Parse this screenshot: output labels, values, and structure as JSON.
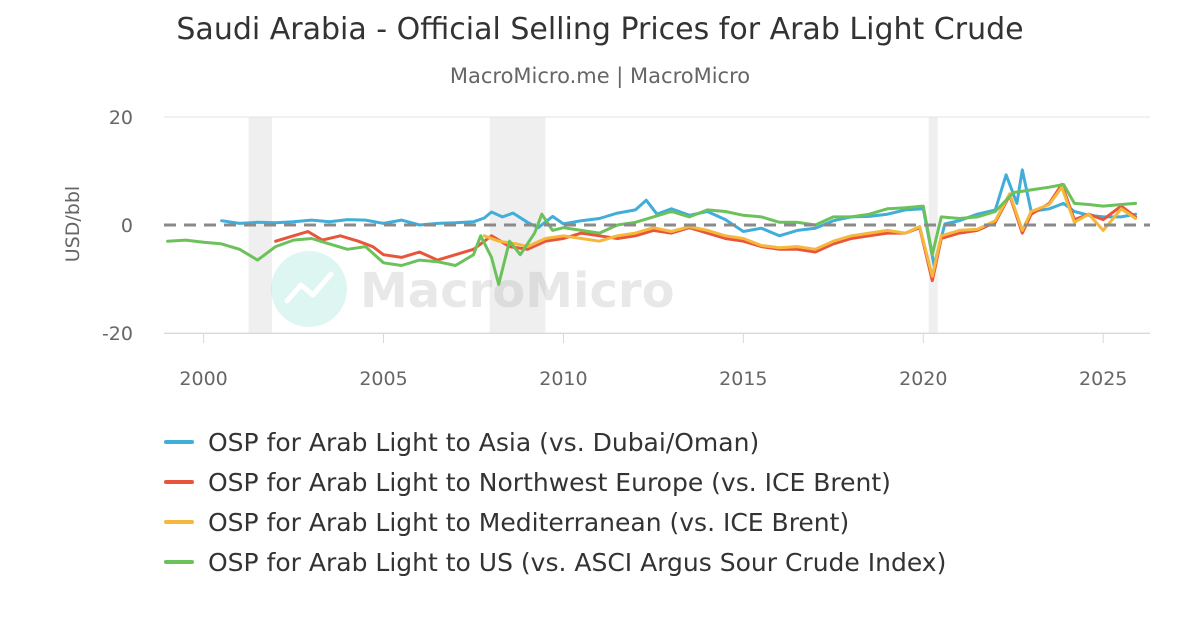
{
  "header": {
    "title": "Saudi Arabia - Official Selling Prices for Arab Light Crude",
    "subtitle": "MacroMicro.me | MacroMicro"
  },
  "watermark": {
    "text": "MacroMicro",
    "logo_icon": "chart-trend-icon",
    "color": "#6fd7c7"
  },
  "chart_data": {
    "type": "line",
    "title": "Saudi Arabia - Official Selling Prices for Arab Light Crude",
    "subtitle": "MacroMicro.me | MacroMicro",
    "xlabel": "",
    "ylabel": "USD/bbl",
    "xlim": [
      1998.9,
      2026.3
    ],
    "ylim": [
      -20,
      20
    ],
    "xticks": [
      2000,
      2005,
      2010,
      2015,
      2020,
      2025
    ],
    "yticks": [
      -20,
      0,
      20
    ],
    "ytick_labels": [
      "-20",
      "0",
      "20"
    ],
    "grid": true,
    "zero_line": "dashed",
    "legend_position": "bottom",
    "shaded_periods": [
      [
        2001.25,
        2001.9
      ],
      [
        2007.95,
        2009.5
      ],
      [
        2020.15,
        2020.4
      ]
    ],
    "series": [
      {
        "name": "OSP for Arab Light to Asia (vs. Dubai/Oman)",
        "color": "#41add9",
        "points": [
          [
            2000.5,
            0.8
          ],
          [
            2001.0,
            0.3
          ],
          [
            2001.5,
            0.5
          ],
          [
            2002.0,
            0.4
          ],
          [
            2002.5,
            0.6
          ],
          [
            2003.0,
            0.9
          ],
          [
            2003.5,
            0.6
          ],
          [
            2004.0,
            1.0
          ],
          [
            2004.5,
            0.9
          ],
          [
            2005.0,
            0.3
          ],
          [
            2005.5,
            0.9
          ],
          [
            2006.0,
            0.0
          ],
          [
            2006.5,
            0.3
          ],
          [
            2007.0,
            0.4
          ],
          [
            2007.5,
            0.6
          ],
          [
            2007.8,
            1.3
          ],
          [
            2008.0,
            2.4
          ],
          [
            2008.3,
            1.5
          ],
          [
            2008.6,
            2.2
          ],
          [
            2009.0,
            0.5
          ],
          [
            2009.3,
            -0.5
          ],
          [
            2009.7,
            1.6
          ],
          [
            2010.0,
            0.2
          ],
          [
            2010.5,
            0.8
          ],
          [
            2011.0,
            1.2
          ],
          [
            2011.5,
            2.2
          ],
          [
            2012.0,
            2.8
          ],
          [
            2012.3,
            4.6
          ],
          [
            2012.6,
            2.0
          ],
          [
            2013.0,
            3.0
          ],
          [
            2013.5,
            1.8
          ],
          [
            2014.0,
            2.5
          ],
          [
            2014.5,
            1.0
          ],
          [
            2015.0,
            -1.2
          ],
          [
            2015.5,
            -0.6
          ],
          [
            2016.0,
            -2.0
          ],
          [
            2016.5,
            -1.0
          ],
          [
            2017.0,
            -0.6
          ],
          [
            2017.5,
            0.8
          ],
          [
            2018.0,
            1.5
          ],
          [
            2018.5,
            1.6
          ],
          [
            2019.0,
            2.0
          ],
          [
            2019.5,
            2.8
          ],
          [
            2020.0,
            3.0
          ],
          [
            2020.3,
            -7.5
          ],
          [
            2020.6,
            0.2
          ],
          [
            2021.0,
            0.8
          ],
          [
            2021.5,
            2.0
          ],
          [
            2022.0,
            2.8
          ],
          [
            2022.3,
            9.3
          ],
          [
            2022.6,
            4.0
          ],
          [
            2022.75,
            10.2
          ],
          [
            2023.0,
            2.5
          ],
          [
            2023.5,
            3.0
          ],
          [
            2023.9,
            4.0
          ],
          [
            2024.2,
            2.5
          ],
          [
            2024.6,
            1.8
          ],
          [
            2025.0,
            1.5
          ],
          [
            2025.5,
            1.5
          ],
          [
            2025.9,
            2.0
          ]
        ]
      },
      {
        "name": "OSP for Arab Light to Northwest Europe (vs. ICE Brent)",
        "color": "#e8553a",
        "points": [
          [
            2002.0,
            -3.0
          ],
          [
            2002.5,
            -2.0
          ],
          [
            2002.9,
            -1.2
          ],
          [
            2003.3,
            -2.8
          ],
          [
            2003.8,
            -2.0
          ],
          [
            2004.3,
            -3.0
          ],
          [
            2004.7,
            -4.0
          ],
          [
            2005.0,
            -5.5
          ],
          [
            2005.5,
            -6.0
          ],
          [
            2006.0,
            -5.0
          ],
          [
            2006.5,
            -6.5
          ],
          [
            2007.0,
            -5.5
          ],
          [
            2007.5,
            -4.5
          ],
          [
            2008.0,
            -2.0
          ],
          [
            2008.5,
            -4.0
          ],
          [
            2009.0,
            -4.5
          ],
          [
            2009.5,
            -3.0
          ],
          [
            2010.0,
            -2.5
          ],
          [
            2010.5,
            -1.5
          ],
          [
            2011.0,
            -2.0
          ],
          [
            2011.5,
            -2.5
          ],
          [
            2012.0,
            -2.0
          ],
          [
            2012.5,
            -1.0
          ],
          [
            2013.0,
            -1.5
          ],
          [
            2013.5,
            -0.5
          ],
          [
            2014.0,
            -1.5
          ],
          [
            2014.5,
            -2.5
          ],
          [
            2015.0,
            -3.0
          ],
          [
            2015.5,
            -4.0
          ],
          [
            2016.0,
            -4.5
          ],
          [
            2016.5,
            -4.5
          ],
          [
            2017.0,
            -5.0
          ],
          [
            2017.5,
            -3.5
          ],
          [
            2018.0,
            -2.5
          ],
          [
            2018.5,
            -2.0
          ],
          [
            2019.0,
            -1.5
          ],
          [
            2019.5,
            -1.5
          ],
          [
            2019.9,
            -0.5
          ],
          [
            2020.25,
            -10.3
          ],
          [
            2020.5,
            -2.5
          ],
          [
            2021.0,
            -1.5
          ],
          [
            2021.5,
            -1.0
          ],
          [
            2022.0,
            0.5
          ],
          [
            2022.4,
            5.5
          ],
          [
            2022.75,
            -1.5
          ],
          [
            2023.0,
            2.0
          ],
          [
            2023.5,
            4.0
          ],
          [
            2023.85,
            7.5
          ],
          [
            2024.2,
            1.0
          ],
          [
            2024.6,
            2.0
          ],
          [
            2025.0,
            1.0
          ],
          [
            2025.5,
            3.5
          ],
          [
            2025.9,
            1.5
          ]
        ]
      },
      {
        "name": "OSP for Arab Light to Mediterranean (vs. ICE Brent)",
        "color": "#f5b83d",
        "points": [
          [
            2007.8,
            -2.0
          ],
          [
            2008.2,
            -3.0
          ],
          [
            2008.7,
            -3.5
          ],
          [
            2009.0,
            -4.0
          ],
          [
            2009.5,
            -2.5
          ],
          [
            2010.0,
            -2.0
          ],
          [
            2010.5,
            -2.5
          ],
          [
            2011.0,
            -3.0
          ],
          [
            2011.5,
            -2.0
          ],
          [
            2012.0,
            -1.5
          ],
          [
            2012.5,
            -0.5
          ],
          [
            2013.0,
            -1.2
          ],
          [
            2013.5,
            -0.3
          ],
          [
            2014.0,
            -1.0
          ],
          [
            2014.5,
            -2.0
          ],
          [
            2015.0,
            -2.5
          ],
          [
            2015.5,
            -3.8
          ],
          [
            2016.0,
            -4.2
          ],
          [
            2016.5,
            -4.0
          ],
          [
            2017.0,
            -4.5
          ],
          [
            2017.5,
            -3.0
          ],
          [
            2018.0,
            -2.0
          ],
          [
            2018.5,
            -1.5
          ],
          [
            2019.0,
            -1.0
          ],
          [
            2019.5,
            -1.5
          ],
          [
            2019.9,
            -0.3
          ],
          [
            2020.25,
            -9.5
          ],
          [
            2020.5,
            -2.0
          ],
          [
            2021.0,
            -1.0
          ],
          [
            2021.5,
            -0.8
          ],
          [
            2022.0,
            0.8
          ],
          [
            2022.4,
            5.8
          ],
          [
            2022.75,
            -1.0
          ],
          [
            2023.0,
            2.5
          ],
          [
            2023.5,
            3.8
          ],
          [
            2023.85,
            7.0
          ],
          [
            2024.2,
            0.5
          ],
          [
            2024.6,
            2.0
          ],
          [
            2025.0,
            -1.0
          ],
          [
            2025.5,
            3.0
          ],
          [
            2025.9,
            1.2
          ]
        ]
      },
      {
        "name": "OSP for Arab Light to US (vs. ASCI Argus Sour Crude Index)",
        "color": "#6cc25a",
        "points": [
          [
            1999.0,
            -3.0
          ],
          [
            1999.5,
            -2.8
          ],
          [
            2000.0,
            -3.2
          ],
          [
            2000.5,
            -3.5
          ],
          [
            2001.0,
            -4.5
          ],
          [
            2001.5,
            -6.5
          ],
          [
            2002.0,
            -4.0
          ],
          [
            2002.5,
            -2.8
          ],
          [
            2003.0,
            -2.5
          ],
          [
            2003.5,
            -3.5
          ],
          [
            2004.0,
            -4.5
          ],
          [
            2004.5,
            -4.0
          ],
          [
            2005.0,
            -7.0
          ],
          [
            2005.5,
            -7.5
          ],
          [
            2006.0,
            -6.5
          ],
          [
            2006.5,
            -6.8
          ],
          [
            2007.0,
            -7.5
          ],
          [
            2007.5,
            -5.5
          ],
          [
            2007.7,
            -2.0
          ],
          [
            2008.0,
            -6.0
          ],
          [
            2008.2,
            -11.0
          ],
          [
            2008.5,
            -3.0
          ],
          [
            2008.8,
            -5.5
          ],
          [
            2009.2,
            -1.5
          ],
          [
            2009.4,
            2.0
          ],
          [
            2009.7,
            -1.0
          ],
          [
            2010.0,
            -0.5
          ],
          [
            2010.5,
            -1.0
          ],
          [
            2011.0,
            -1.5
          ],
          [
            2011.5,
            0.0
          ],
          [
            2012.0,
            0.5
          ],
          [
            2012.5,
            1.5
          ],
          [
            2013.0,
            2.5
          ],
          [
            2013.5,
            1.5
          ],
          [
            2014.0,
            2.8
          ],
          [
            2014.5,
            2.5
          ],
          [
            2015.0,
            1.8
          ],
          [
            2015.5,
            1.5
          ],
          [
            2016.0,
            0.5
          ],
          [
            2016.5,
            0.5
          ],
          [
            2017.0,
            0.0
          ],
          [
            2017.5,
            1.5
          ],
          [
            2018.0,
            1.5
          ],
          [
            2018.5,
            2.0
          ],
          [
            2019.0,
            3.0
          ],
          [
            2019.5,
            3.2
          ],
          [
            2020.0,
            3.5
          ],
          [
            2020.25,
            -5.5
          ],
          [
            2020.5,
            1.5
          ],
          [
            2021.0,
            1.2
          ],
          [
            2021.5,
            1.5
          ],
          [
            2022.0,
            2.5
          ],
          [
            2022.5,
            6.0
          ],
          [
            2023.0,
            6.5
          ],
          [
            2023.5,
            7.0
          ],
          [
            2023.9,
            7.5
          ],
          [
            2024.2,
            4.0
          ],
          [
            2024.6,
            3.8
          ],
          [
            2025.0,
            3.5
          ],
          [
            2025.5,
            3.8
          ],
          [
            2025.9,
            4.0
          ]
        ]
      }
    ]
  }
}
